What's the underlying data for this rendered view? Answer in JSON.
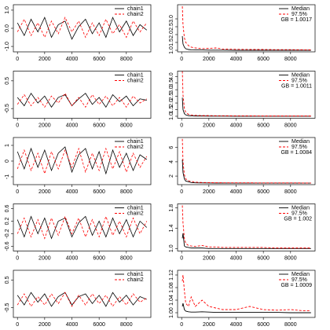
{
  "chart_data": [
    {
      "type": "trace",
      "xlim": [
        -300,
        9800
      ],
      "ylim": [
        -1.3,
        1.3
      ],
      "xticks": [
        0,
        2000,
        4000,
        6000,
        8000
      ],
      "yticks": [
        {
          "value": -1,
          "label": "-1.0"
        },
        {
          "value": 0,
          "label": "0.0"
        },
        {
          "value": 1,
          "label": "1.0"
        }
      ],
      "x": [
        0,
        500,
        1000,
        1500,
        2000,
        2500,
        3000,
        3500,
        4000,
        4500,
        5000,
        5500,
        6000,
        6500,
        7000,
        7500,
        8000,
        8500,
        9000,
        9500
      ],
      "series": [
        {
          "name": "chain1",
          "color": "#000000",
          "dashed": false,
          "values": [
            0.3,
            -0.4,
            0.5,
            -0.2,
            0.6,
            -0.5,
            0.2,
            0.4,
            -0.6,
            0.1,
            0.5,
            -0.3,
            0.3,
            -0.5,
            0.6,
            -0.2,
            0.4,
            -0.4,
            0.2,
            -0.1
          ]
        },
        {
          "name": "chain2",
          "color": "#ff0000",
          "dashed": true,
          "values": [
            -0.2,
            0.5,
            -0.4,
            0.3,
            -0.5,
            0.4,
            -0.3,
            0.6,
            -0.2,
            0.4,
            -0.5,
            0.3,
            -0.4,
            0.5,
            -0.3,
            0.2,
            -0.5,
            0.4,
            -0.2,
            0.3
          ]
        }
      ]
    },
    {
      "type": "gelman",
      "xlim": [
        -300,
        9800
      ],
      "ylim": [
        0.9,
        3.9
      ],
      "xticks": [
        0,
        2000,
        4000,
        6000,
        8000
      ],
      "yticks": [
        {
          "value": 1,
          "label": "1.0"
        },
        1.5,
        {
          "value": 2,
          "label": "2.0"
        },
        2.5,
        {
          "value": 3,
          "label": "3.0"
        }
      ],
      "annotation": "GB = 1.0017",
      "x": [
        50,
        100,
        200,
        300,
        500,
        700,
        1000,
        1500,
        2000,
        2500,
        3000,
        4000,
        5000,
        6000,
        7000,
        8000,
        9000,
        9500
      ],
      "series": [
        {
          "name": "Median",
          "color": "#000000",
          "dashed": false,
          "values": [
            1.9,
            1.4,
            1.2,
            1.1,
            1.05,
            1.03,
            1.02,
            1.02,
            1.01,
            1.01,
            1.01,
            1.0,
            1.0,
            1.0,
            1.0,
            1.0,
            1.0,
            1.0
          ]
        },
        {
          "name": "97.5%",
          "color": "#ff0000",
          "dashed": true,
          "values": [
            3.8,
            2.6,
            1.8,
            1.5,
            1.3,
            1.2,
            1.15,
            1.1,
            1.12,
            1.15,
            1.08,
            1.06,
            1.05,
            1.05,
            1.04,
            1.04,
            1.03,
            1.03
          ]
        }
      ]
    },
    {
      "type": "trace",
      "xlim": [
        -300,
        9800
      ],
      "ylim": [
        -0.85,
        0.85
      ],
      "xticks": [
        0,
        2000,
        4000,
        6000,
        8000
      ],
      "yticks": [
        -0.5,
        0.5
      ],
      "x": [
        0,
        500,
        1000,
        1500,
        2000,
        2500,
        3000,
        3500,
        4000,
        4500,
        5000,
        5500,
        6000,
        6500,
        7000,
        7500,
        8000,
        8500,
        9000,
        9500
      ],
      "series": [
        {
          "name": "chain1",
          "color": "#000000",
          "dashed": false,
          "values": [
            -0.1,
            -0.4,
            0.05,
            -0.3,
            -0.05,
            -0.45,
            -0.1,
            0.0,
            -0.4,
            -0.15,
            0.05,
            -0.35,
            -0.1,
            -0.45,
            0.0,
            -0.25,
            -0.05,
            -0.4,
            -0.15,
            -0.2
          ]
        },
        {
          "name": "chain2",
          "color": "#ff0000",
          "dashed": true,
          "values": [
            -0.35,
            0.0,
            -0.4,
            -0.1,
            -0.45,
            -0.05,
            -0.3,
            0.05,
            -0.4,
            -0.1,
            -0.45,
            0.0,
            -0.35,
            -0.05,
            -0.4,
            -0.1,
            -0.45,
            -0.05,
            -0.3,
            -0.15
          ]
        }
      ]
    },
    {
      "type": "gelman",
      "xlim": [
        -300,
        9800
      ],
      "ylim": [
        0.85,
        4.4
      ],
      "xticks": [
        0,
        2000,
        4000,
        6000,
        8000
      ],
      "yticks": [
        {
          "value": 1,
          "label": "1.0"
        },
        1.5,
        {
          "value": 2,
          "label": "2.0"
        },
        2.5,
        {
          "value": 3,
          "label": "3.0"
        },
        3.5,
        {
          "value": 4,
          "label": "4.0"
        }
      ],
      "annotation": "GB = 1.0011",
      "x": [
        50,
        100,
        200,
        300,
        500,
        700,
        1000,
        1500,
        2000,
        2500,
        3000,
        4000,
        5000,
        6000,
        7000,
        8000,
        9000,
        9500
      ],
      "series": [
        {
          "name": "Median",
          "color": "#000000",
          "dashed": false,
          "values": [
            2.4,
            1.5,
            1.2,
            1.1,
            1.05,
            1.03,
            1.02,
            1.02,
            1.01,
            1.01,
            1.01,
            1.0,
            1.0,
            1.0,
            1.0,
            1.0,
            1.0,
            1.0
          ]
        },
        {
          "name": "97.5%",
          "color": "#ff0000",
          "dashed": true,
          "values": [
            4.4,
            2.6,
            1.6,
            1.3,
            1.15,
            1.1,
            1.07,
            1.05,
            1.05,
            1.04,
            1.04,
            1.03,
            1.03,
            1.02,
            1.02,
            1.02,
            1.02,
            1.02
          ]
        }
      ]
    },
    {
      "type": "trace",
      "xlim": [
        -300,
        9800
      ],
      "ylim": [
        -1.5,
        1.5
      ],
      "xticks": [
        0,
        2000,
        4000,
        6000,
        8000
      ],
      "yticks": [
        -1,
        0,
        1
      ],
      "x": [
        0,
        500,
        1000,
        1500,
        2000,
        2500,
        3000,
        3500,
        4000,
        4500,
        5000,
        5500,
        6000,
        6500,
        7000,
        7500,
        8000,
        8500,
        9000,
        9500
      ],
      "series": [
        {
          "name": "chain1",
          "color": "#000000",
          "dashed": false,
          "values": [
            0.6,
            -0.5,
            0.8,
            -0.4,
            0.7,
            -0.6,
            0.5,
            0.9,
            -0.7,
            0.4,
            0.8,
            -0.5,
            0.6,
            -0.8,
            0.7,
            -0.4,
            0.5,
            -0.6,
            0.4,
            0.1
          ]
        },
        {
          "name": "chain2",
          "color": "#ff0000",
          "dashed": true,
          "values": [
            -0.5,
            0.7,
            -0.6,
            0.5,
            -0.8,
            0.6,
            -0.5,
            0.7,
            -0.4,
            0.8,
            -0.7,
            0.5,
            -0.6,
            0.8,
            -0.5,
            0.6,
            -0.7,
            0.5,
            -0.4,
            0.3
          ]
        }
      ]
    },
    {
      "type": "gelman",
      "xlim": [
        -300,
        9800
      ],
      "ylim": [
        0.8,
        7.4
      ],
      "xticks": [
        0,
        2000,
        4000,
        6000,
        8000
      ],
      "yticks": [
        2,
        4,
        6
      ],
      "annotation": "GB = 1.0084",
      "x": [
        50,
        100,
        200,
        300,
        500,
        700,
        1000,
        1500,
        2000,
        2500,
        3000,
        4000,
        5000,
        6000,
        7000,
        8000,
        9000,
        9500
      ],
      "series": [
        {
          "name": "Median",
          "color": "#000000",
          "dashed": false,
          "values": [
            4.3,
            2.5,
            1.6,
            1.3,
            1.2,
            1.1,
            1.05,
            1.04,
            1.03,
            1.02,
            1.02,
            1.01,
            1.01,
            1.01,
            1.01,
            1.01,
            1.01,
            1.01
          ]
        },
        {
          "name": "97.5%",
          "color": "#ff0000",
          "dashed": true,
          "values": [
            7.2,
            4.0,
            2.2,
            1.6,
            1.35,
            1.25,
            1.15,
            1.1,
            1.08,
            1.07,
            1.06,
            1.05,
            1.05,
            1.04,
            1.04,
            1.04,
            1.03,
            1.03
          ]
        }
      ]
    },
    {
      "type": "trace",
      "xlim": [
        -300,
        9800
      ],
      "ylim": [
        -0.75,
        0.75
      ],
      "xticks": [
        0,
        2000,
        4000,
        6000,
        8000
      ],
      "yticks": [
        -0.6,
        -0.2,
        0.2,
        0.6
      ],
      "x": [
        0,
        500,
        1000,
        1500,
        2000,
        2500,
        3000,
        3500,
        4000,
        4500,
        5000,
        5500,
        6000,
        6500,
        7000,
        7500,
        8000,
        8500,
        9000,
        9500
      ],
      "series": [
        {
          "name": "chain1",
          "color": "#000000",
          "dashed": false,
          "values": [
            0.25,
            -0.3,
            0.35,
            -0.2,
            0.3,
            -0.35,
            0.2,
            0.3,
            -0.3,
            0.15,
            0.35,
            -0.25,
            0.2,
            -0.3,
            0.3,
            -0.2,
            0.25,
            -0.3,
            0.2,
            0.0
          ]
        },
        {
          "name": "chain2",
          "color": "#ff0000",
          "dashed": true,
          "values": [
            -0.2,
            0.3,
            -0.3,
            0.25,
            -0.35,
            0.3,
            -0.25,
            0.35,
            -0.2,
            0.3,
            -0.3,
            0.25,
            -0.3,
            0.35,
            -0.25,
            0.2,
            -0.3,
            0.3,
            -0.2,
            0.2
          ]
        }
      ]
    },
    {
      "type": "gelman",
      "xlim": [
        -300,
        9800
      ],
      "ylim": [
        0.95,
        1.88
      ],
      "xticks": [
        0,
        2000,
        4000,
        6000,
        8000
      ],
      "yticks": [
        {
          "value": 1,
          "label": "1.0"
        },
        1.4,
        1.8
      ],
      "annotation": "GB = 1.002",
      "x": [
        50,
        100,
        200,
        300,
        500,
        700,
        1000,
        1500,
        2000,
        2500,
        3000,
        4000,
        5000,
        6000,
        7000,
        8000,
        9000,
        9500
      ],
      "series": [
        {
          "name": "Median",
          "color": "#000000",
          "dashed": false,
          "values": [
            1.2,
            1.3,
            1.05,
            1.03,
            1.02,
            1.01,
            1.01,
            1.01,
            1.0,
            1.0,
            1.0,
            1.0,
            1.0,
            1.0,
            1.0,
            1.0,
            1.0,
            1.0
          ]
        },
        {
          "name": "97.5%",
          "color": "#ff0000",
          "dashed": true,
          "values": [
            1.85,
            1.5,
            1.2,
            1.1,
            1.06,
            1.05,
            1.04,
            1.06,
            1.03,
            1.03,
            1.02,
            1.02,
            1.02,
            1.02,
            1.01,
            1.01,
            1.01,
            1.01
          ]
        }
      ]
    },
    {
      "type": "trace",
      "xlim": [
        -300,
        9800
      ],
      "ylim": [
        -0.85,
        0.85
      ],
      "xticks": [
        0,
        2000,
        4000,
        6000,
        8000
      ],
      "yticks": [
        -0.5,
        0.5
      ],
      "x": [
        0,
        500,
        1000,
        1500,
        2000,
        2500,
        3000,
        3500,
        4000,
        4500,
        5000,
        5500,
        6000,
        6500,
        7000,
        7500,
        8000,
        8500,
        9000,
        9500
      ],
      "series": [
        {
          "name": "chain1",
          "color": "#000000",
          "dashed": false,
          "values": [
            -0.05,
            -0.4,
            0.05,
            -0.3,
            0.0,
            -0.45,
            -0.1,
            0.05,
            -0.4,
            -0.1,
            0.0,
            -0.35,
            -0.05,
            -0.45,
            0.05,
            -0.3,
            -0.05,
            -0.4,
            -0.1,
            -0.2
          ]
        },
        {
          "name": "chain2",
          "color": "#ff0000",
          "dashed": true,
          "values": [
            -0.4,
            0.0,
            -0.45,
            -0.1,
            -0.4,
            0.0,
            -0.35,
            0.05,
            -0.45,
            -0.05,
            -0.4,
            0.0,
            -0.35,
            -0.05,
            -0.45,
            -0.1,
            -0.4,
            0.0,
            -0.3,
            -0.15
          ]
        }
      ]
    },
    {
      "type": "gelman",
      "xlim": [
        -300,
        9800
      ],
      "ylim": [
        0.985,
        1.135
      ],
      "xticks": [
        0,
        2000,
        4000,
        6000,
        8000
      ],
      "yticks": [
        {
          "value": 1,
          "label": "1.00"
        },
        1.04,
        1.08,
        1.12
      ],
      "annotation": "GB = 1.0009",
      "x": [
        50,
        100,
        200,
        300,
        500,
        700,
        1000,
        1500,
        2000,
        2500,
        3000,
        4000,
        5000,
        6000,
        7000,
        8000,
        9000,
        9500
      ],
      "series": [
        {
          "name": "Median",
          "color": "#000000",
          "dashed": false,
          "values": [
            1.02,
            1.03,
            1.01,
            1.005,
            1.003,
            1.002,
            1.002,
            1.003,
            1.002,
            1.001,
            1.001,
            1.001,
            1.001,
            1.001,
            1.001,
            1.0,
            1.0,
            1.0
          ]
        },
        {
          "name": "97.5%",
          "color": "#ff0000",
          "dashed": true,
          "values": [
            1.1,
            1.12,
            1.07,
            1.03,
            1.02,
            1.05,
            1.02,
            1.04,
            1.02,
            1.015,
            1.01,
            1.01,
            1.02,
            1.01,
            1.008,
            1.01,
            1.006,
            1.006
          ]
        }
      ]
    }
  ]
}
